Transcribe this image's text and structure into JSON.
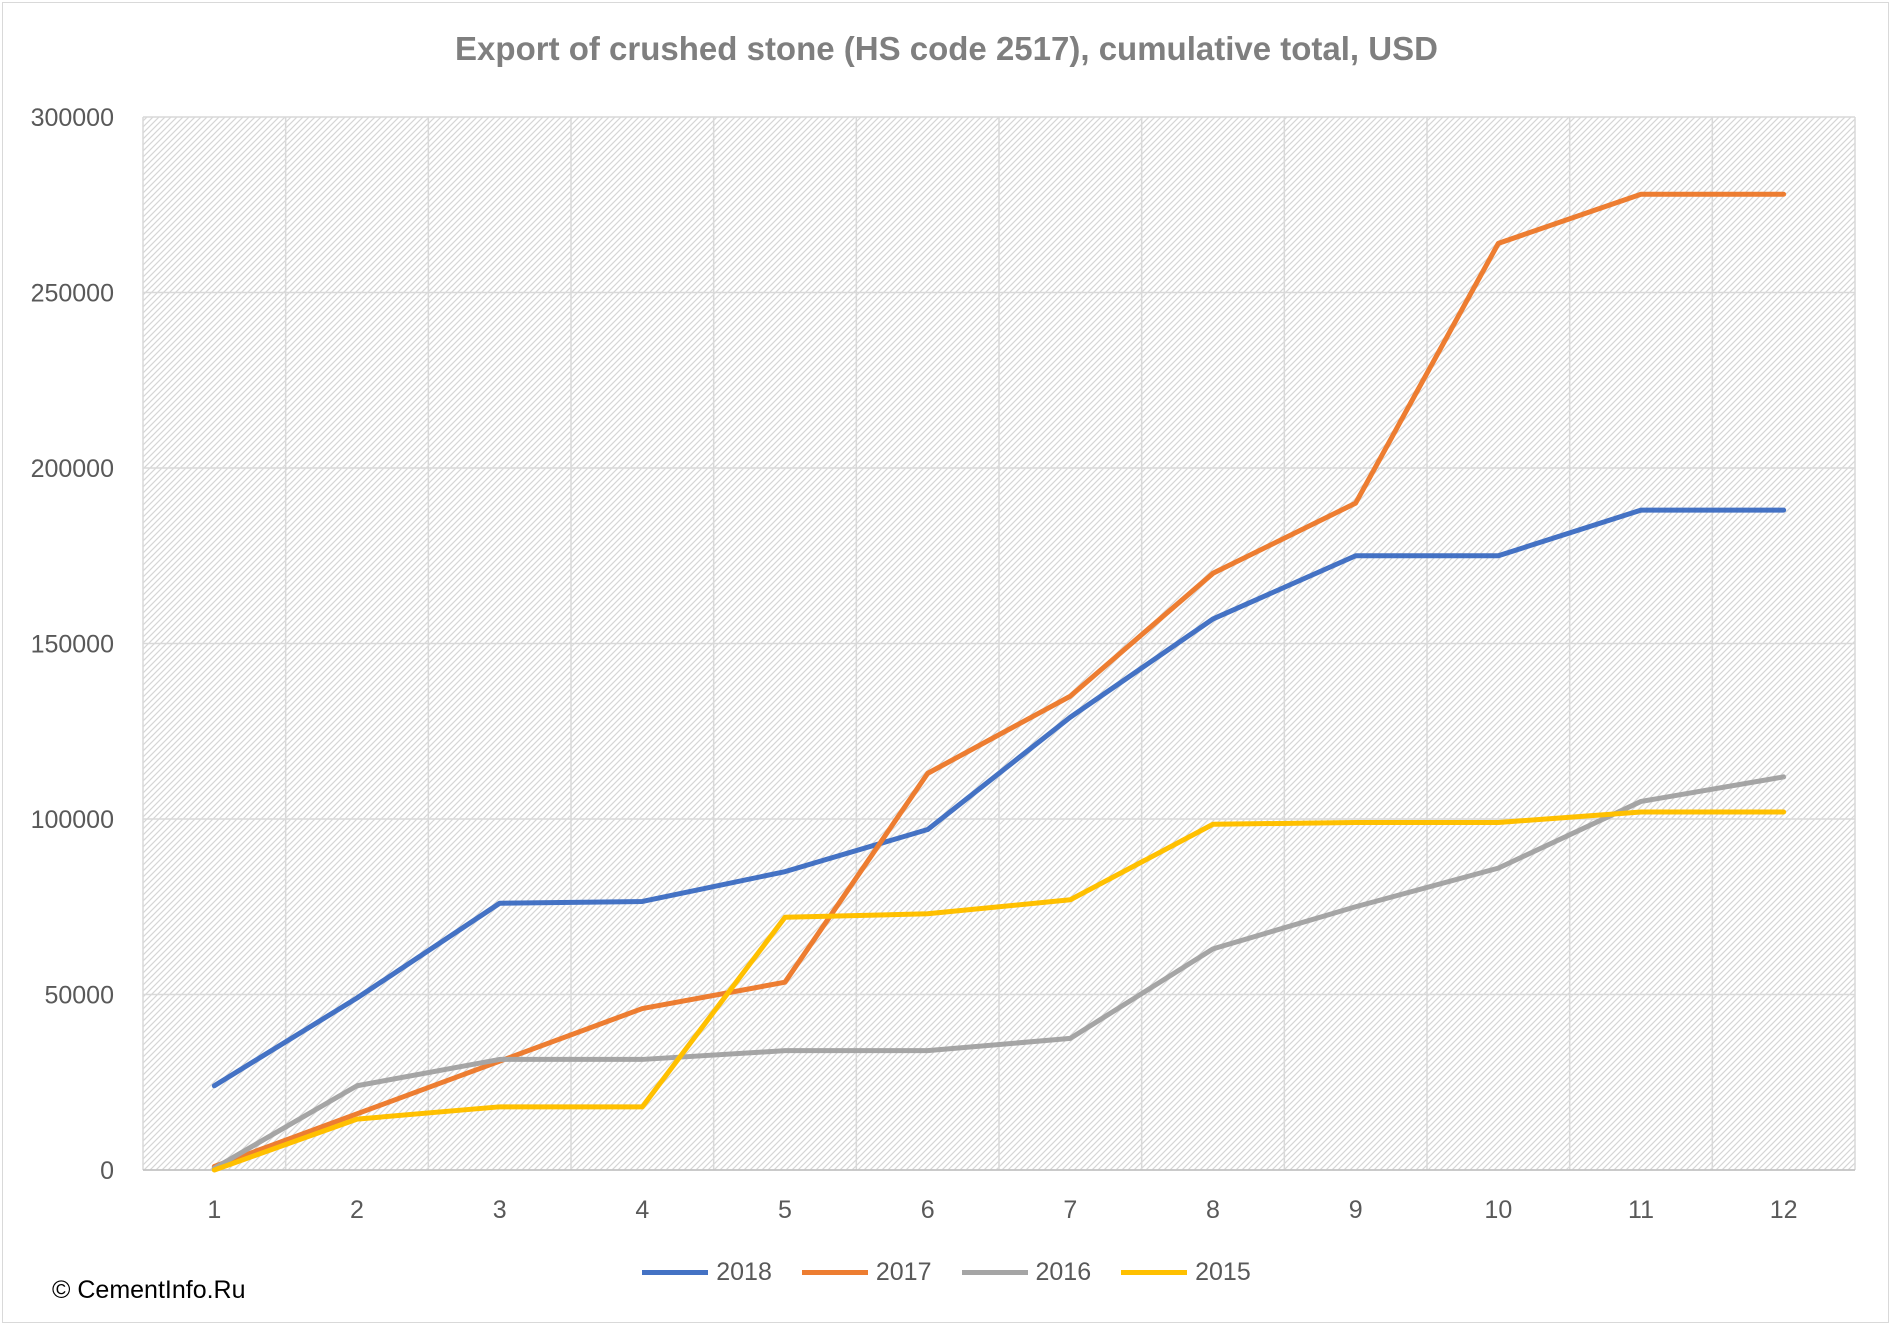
{
  "chart_data": {
    "type": "line",
    "title": "Export of crushed stone (HS code 2517), cumulative total, USD",
    "xlabel": "",
    "ylabel": "",
    "categories": [
      "1",
      "2",
      "3",
      "4",
      "5",
      "6",
      "7",
      "8",
      "9",
      "10",
      "11",
      "12"
    ],
    "yticks": [
      "0",
      "50000",
      "100000",
      "150000",
      "200000",
      "250000",
      "300000"
    ],
    "ylim": [
      0,
      300000
    ],
    "grid": true,
    "legend_position": "bottom",
    "series": [
      {
        "name": "2018",
        "color": "#4472C4",
        "values": [
          24000,
          49000,
          76000,
          76500,
          85000,
          97000,
          129000,
          157000,
          175000,
          175000,
          188000,
          188000
        ]
      },
      {
        "name": "2017",
        "color": "#ED7D31",
        "values": [
          1000,
          16000,
          31000,
          46000,
          53500,
          113000,
          135000,
          170000,
          190000,
          264000,
          278000,
          278000
        ]
      },
      {
        "name": "2016",
        "color": "#A5A5A5",
        "values": [
          500,
          24000,
          31500,
          31500,
          34000,
          34000,
          37500,
          63000,
          75000,
          86000,
          105000,
          112000
        ]
      },
      {
        "name": "2015",
        "color": "#FFC000",
        "values": [
          0,
          14500,
          18000,
          18000,
          72000,
          73000,
          77000,
          98500,
          99000,
          99000,
          102000,
          102000
        ]
      }
    ]
  },
  "credit": "© CementInfo.Ru"
}
